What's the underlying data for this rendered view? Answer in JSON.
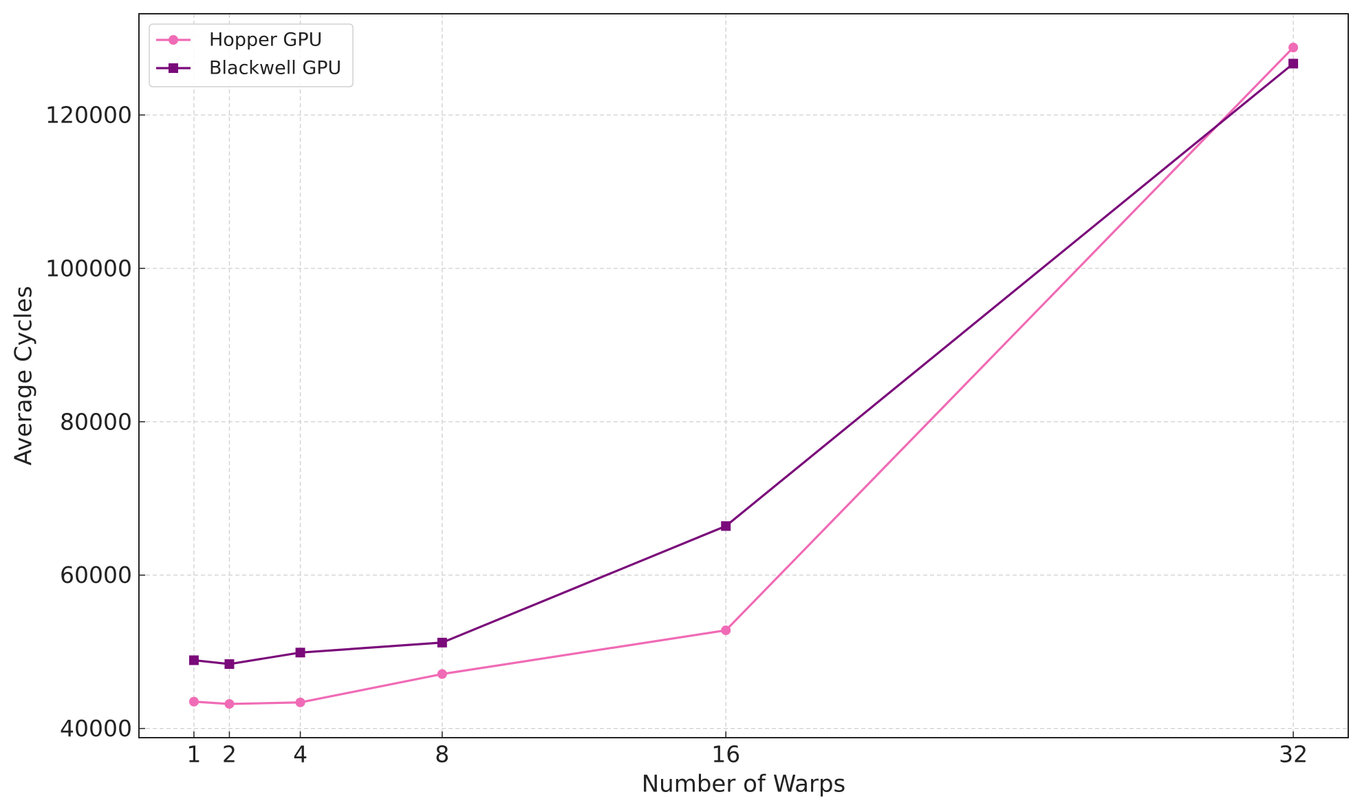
{
  "chart_data": {
    "type": "line",
    "x_label": "Number of Warps",
    "y_label": "Average Cycles",
    "x": [
      1,
      2,
      4,
      8,
      16,
      32
    ],
    "series": [
      {
        "name": "Hopper GPU",
        "color": "#f06bb5",
        "marker": "circle",
        "values": [
          43500,
          43200,
          43400,
          47100,
          52800,
          128800
        ]
      },
      {
        "name": "Blackwell GPU",
        "color": "#7a0a7a",
        "marker": "square",
        "values": [
          48900,
          48400,
          49900,
          51200,
          66400,
          126700
        ]
      }
    ],
    "xlim": [
      -0.55,
      33.55
    ],
    "xticks": [
      1,
      2,
      4,
      8,
      16,
      32
    ],
    "ylim": [
      38800,
      133200
    ],
    "yticks": [
      40000,
      60000,
      80000,
      100000,
      120000
    ],
    "grid": true,
    "legend": "upper left"
  }
}
